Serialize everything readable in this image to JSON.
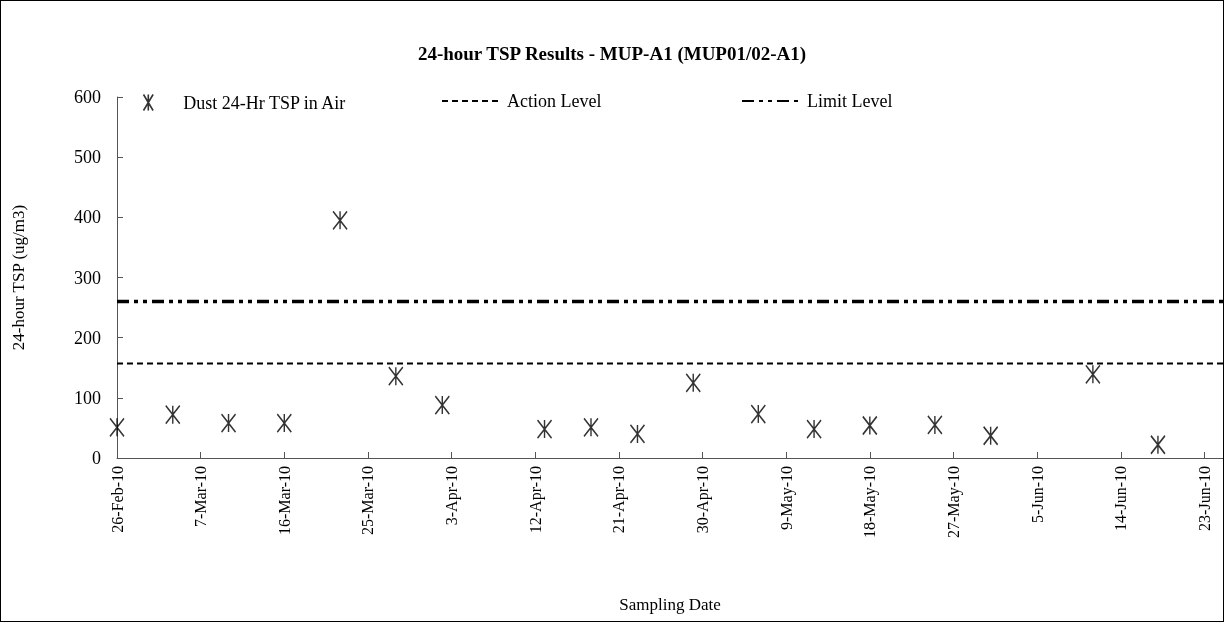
{
  "chart_data": {
    "type": "scatter",
    "title": "24-hour TSP Results - MUP-A1 (MUP01/02-A1)",
    "xlabel": "Sampling Date",
    "ylabel": "24-hour TSP (ug/m3)",
    "x": [
      "--02-26",
      "--03-04",
      "--03-10",
      "--03-16",
      "--03-22",
      "--03-28",
      "--04-02",
      "--04-13",
      "--04-18",
      "--04-23",
      "--04-29",
      "--05-06",
      "--05-12",
      "--05-18",
      "--05-25",
      "--05-31",
      "--06-11",
      "--06-18"
    ],
    "series": [
      {
        "name": "Dust 24-Hr TSP in Air",
        "color": "#000000",
        "values": [
          51,
          72,
          58,
          58,
          395,
          136,
          88,
          48,
          51,
          40,
          125,
          73,
          48,
          54,
          55,
          37,
          139,
          22
        ]
      }
    ],
    "marker": "cross",
    "ref_lines": [
      {
        "axis": "y",
        "value": 157,
        "label": "Action Level",
        "color": "#000000",
        "line_style": "dashed"
      },
      {
        "axis": "y",
        "value": 260,
        "label": "Limit Level",
        "color": "#000000",
        "line_style": "dashdot"
      }
    ],
    "xlim": [
      "--02-26",
      "--06-25"
    ],
    "xticks": [
      {
        "value": "--02-26",
        "label": "26-Feb-10"
      },
      {
        "value": "--03-07",
        "label": "7-Mar-10"
      },
      {
        "value": "--03-16",
        "label": "16-Mar-10"
      },
      {
        "value": "--03-25",
        "label": "25-Mar-10"
      },
      {
        "value": "--04-03",
        "label": "3-Apr-10"
      },
      {
        "value": "--04-12",
        "label": "12-Apr-10"
      },
      {
        "value": "--04-21",
        "label": "21-Apr-10"
      },
      {
        "value": "--04-30",
        "label": "30-Apr-10"
      },
      {
        "value": "--05-09",
        "label": "9-May-10"
      },
      {
        "value": "--05-18",
        "label": "18-May-10"
      },
      {
        "value": "--05-27",
        "label": "27-May-10"
      },
      {
        "value": "--06-05",
        "label": "5-Jun-10"
      },
      {
        "value": "--06-14",
        "label": "14-Jun-10"
      },
      {
        "value": "--06-23",
        "label": "23-Jun-10"
      }
    ],
    "ylim": [
      0,
      600
    ],
    "yticks": [
      0,
      100,
      200,
      300,
      400,
      500,
      600
    ],
    "grid": false,
    "legend": "top"
  }
}
